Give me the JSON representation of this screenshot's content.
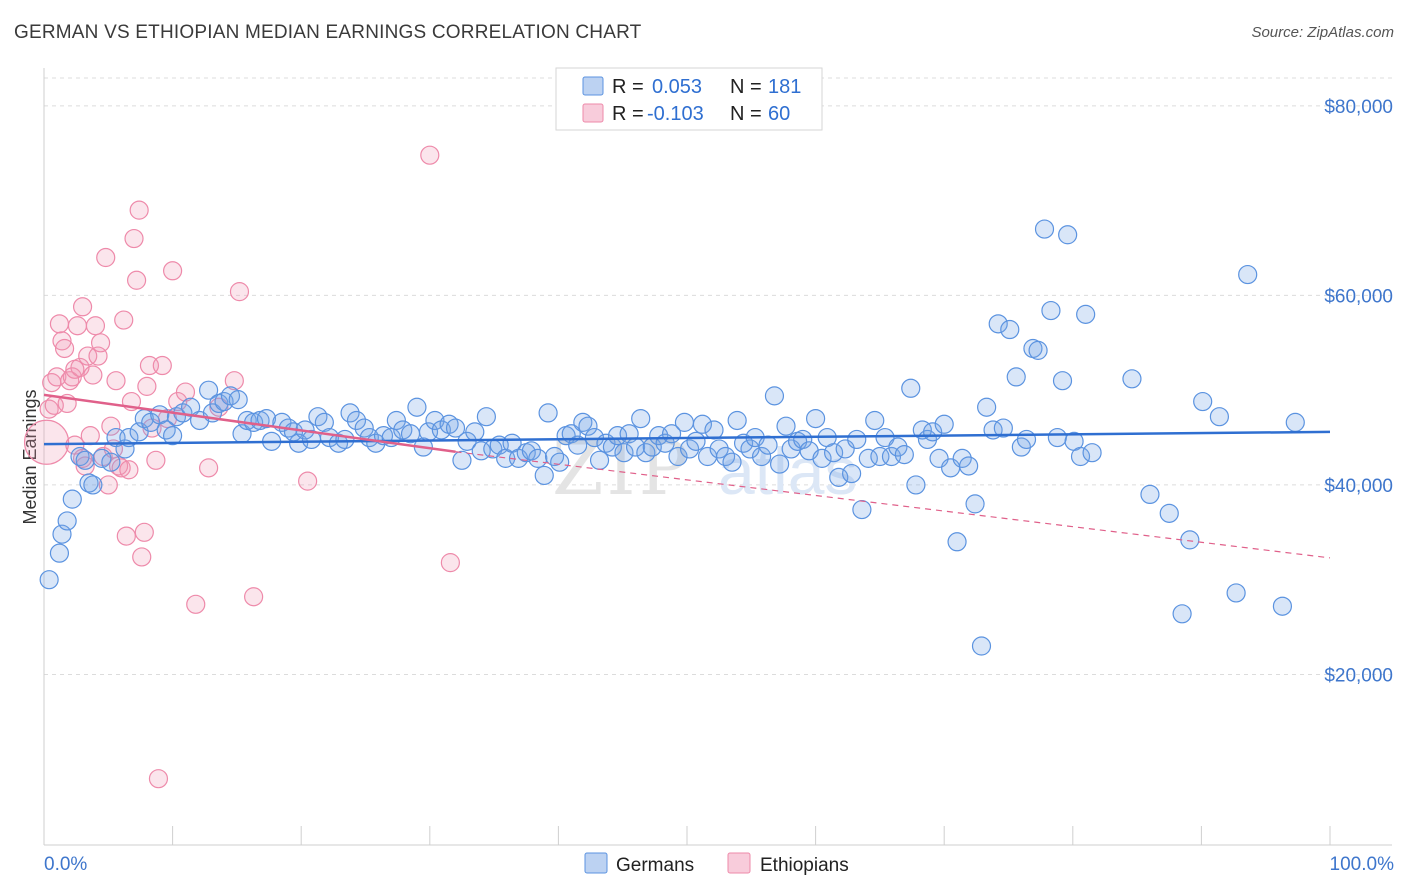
{
  "title": "GERMAN VS ETHIOPIAN MEDIAN EARNINGS CORRELATION CHART",
  "source": "Source: ZipAtlas.com",
  "colors": {
    "germans": "#5b93e0",
    "germans_fill": "rgba(120,165,230,0.28)",
    "germans_line": "#2f6fd1",
    "ethiopians": "#ee8aaa",
    "ethiopians_fill": "rgba(240,150,180,0.25)",
    "ethiopians_line": "#e0608a",
    "axis_label": "#3e76cc",
    "grid": "#dcdcdc"
  },
  "legend": {
    "rows": [
      {
        "r_label": "R =",
        "r_value": "0.053",
        "n_label": "N =",
        "n_value": "181"
      },
      {
        "r_label": "R =",
        "r_value": "-0.103",
        "n_label": "N =",
        "n_value": "60"
      }
    ]
  },
  "bottom_legend": [
    "Germans",
    "Ethiopians"
  ],
  "watermark": {
    "zip": "ZIP",
    "atlas": "atlas"
  },
  "chart_data": {
    "type": "scatter",
    "title": "GERMAN VS ETHIOPIAN MEDIAN EARNINGS CORRELATION CHART",
    "xlabel": "",
    "ylabel": "Median Earnings",
    "x_tick_labels": [
      "0.0%",
      "100.0%"
    ],
    "y_tick_labels": [
      "$20,000",
      "$40,000",
      "$60,000",
      "$80,000"
    ],
    "y_ticks": [
      20000,
      40000,
      60000,
      80000
    ],
    "xlim": [
      0,
      100
    ],
    "ylim": [
      2000,
      84000
    ],
    "grid": true,
    "legend_position": "top-center",
    "series": [
      {
        "name": "Germans",
        "r": 0.053,
        "n": 181,
        "trend": [
          [
            0,
            44300
          ],
          [
            100,
            45600
          ]
        ],
        "points": [
          [
            0.4,
            30000
          ],
          [
            1.2,
            32800
          ],
          [
            1.4,
            34800
          ],
          [
            1.8,
            36200
          ],
          [
            2.2,
            38500
          ],
          [
            2.8,
            43000
          ],
          [
            3.2,
            42600
          ],
          [
            3.5,
            40200
          ],
          [
            3.8,
            40000
          ],
          [
            4.5,
            42800
          ],
          [
            5.2,
            42400
          ],
          [
            5.6,
            45000
          ],
          [
            6.3,
            43800
          ],
          [
            6.6,
            45000
          ],
          [
            7.4,
            45600
          ],
          [
            7.8,
            47000
          ],
          [
            8.3,
            46600
          ],
          [
            9.0,
            47400
          ],
          [
            9.5,
            45800
          ],
          [
            10.0,
            45200
          ],
          [
            10.3,
            47200
          ],
          [
            10.8,
            47600
          ],
          [
            11.4,
            48200
          ],
          [
            12.1,
            46800
          ],
          [
            12.8,
            50000
          ],
          [
            13.1,
            47600
          ],
          [
            13.6,
            48600
          ],
          [
            14.0,
            48800
          ],
          [
            14.5,
            49400
          ],
          [
            15.1,
            49000
          ],
          [
            15.4,
            45400
          ],
          [
            15.8,
            46800
          ],
          [
            16.3,
            46600
          ],
          [
            16.8,
            46800
          ],
          [
            17.3,
            47000
          ],
          [
            17.7,
            44600
          ],
          [
            18.5,
            46600
          ],
          [
            19.0,
            46000
          ],
          [
            19.4,
            45600
          ],
          [
            19.8,
            44400
          ],
          [
            20.3,
            45800
          ],
          [
            20.8,
            44800
          ],
          [
            21.3,
            47200
          ],
          [
            21.8,
            46600
          ],
          [
            22.2,
            45000
          ],
          [
            22.9,
            44400
          ],
          [
            23.4,
            44800
          ],
          [
            23.8,
            47600
          ],
          [
            24.3,
            46800
          ],
          [
            24.9,
            46000
          ],
          [
            25.3,
            45000
          ],
          [
            25.8,
            44400
          ],
          [
            26.4,
            45200
          ],
          [
            27.0,
            45000
          ],
          [
            27.4,
            46800
          ],
          [
            27.9,
            45800
          ],
          [
            28.5,
            45400
          ],
          [
            29.0,
            48200
          ],
          [
            29.5,
            44000
          ],
          [
            29.9,
            45600
          ],
          [
            30.4,
            46800
          ],
          [
            30.9,
            45800
          ],
          [
            31.5,
            46400
          ],
          [
            32.0,
            46000
          ],
          [
            32.5,
            42600
          ],
          [
            32.9,
            44600
          ],
          [
            33.5,
            45600
          ],
          [
            34.0,
            43600
          ],
          [
            34.4,
            47200
          ],
          [
            34.9,
            43800
          ],
          [
            35.4,
            44200
          ],
          [
            35.9,
            42800
          ],
          [
            36.4,
            44400
          ],
          [
            36.9,
            42800
          ],
          [
            37.5,
            43400
          ],
          [
            37.9,
            43600
          ],
          [
            38.4,
            42800
          ],
          [
            38.9,
            41000
          ],
          [
            39.2,
            47600
          ],
          [
            39.7,
            43000
          ],
          [
            40.1,
            42400
          ],
          [
            40.6,
            45200
          ],
          [
            41.0,
            45400
          ],
          [
            41.5,
            44200
          ],
          [
            41.9,
            46600
          ],
          [
            42.3,
            46200
          ],
          [
            42.8,
            45000
          ],
          [
            43.2,
            42600
          ],
          [
            43.7,
            44400
          ],
          [
            44.2,
            44000
          ],
          [
            44.6,
            45200
          ],
          [
            45.1,
            43400
          ],
          [
            45.5,
            45400
          ],
          [
            46.0,
            44000
          ],
          [
            46.4,
            47000
          ],
          [
            46.8,
            43400
          ],
          [
            47.3,
            44000
          ],
          [
            47.8,
            45200
          ],
          [
            48.3,
            44400
          ],
          [
            48.8,
            45400
          ],
          [
            49.3,
            43000
          ],
          [
            49.8,
            46600
          ],
          [
            50.2,
            43800
          ],
          [
            50.7,
            44600
          ],
          [
            51.2,
            46400
          ],
          [
            51.6,
            43000
          ],
          [
            52.1,
            45800
          ],
          [
            52.5,
            43800
          ],
          [
            53.0,
            43000
          ],
          [
            53.5,
            42400
          ],
          [
            53.9,
            46800
          ],
          [
            54.4,
            44400
          ],
          [
            54.9,
            43800
          ],
          [
            55.3,
            45000
          ],
          [
            55.8,
            43000
          ],
          [
            56.3,
            44200
          ],
          [
            56.8,
            49400
          ],
          [
            57.2,
            42200
          ],
          [
            57.7,
            46200
          ],
          [
            58.1,
            43800
          ],
          [
            58.6,
            44600
          ],
          [
            59.0,
            44800
          ],
          [
            59.5,
            43600
          ],
          [
            60.0,
            47000
          ],
          [
            60.5,
            42800
          ],
          [
            60.9,
            45000
          ],
          [
            61.4,
            43400
          ],
          [
            61.8,
            40800
          ],
          [
            62.3,
            43800
          ],
          [
            62.8,
            41200
          ],
          [
            63.2,
            44800
          ],
          [
            63.6,
            37400
          ],
          [
            64.1,
            42800
          ],
          [
            64.6,
            46800
          ],
          [
            65.0,
            43000
          ],
          [
            65.4,
            45000
          ],
          [
            65.9,
            43000
          ],
          [
            66.4,
            44000
          ],
          [
            66.9,
            43200
          ],
          [
            67.4,
            50200
          ],
          [
            67.8,
            40000
          ],
          [
            68.3,
            45800
          ],
          [
            68.7,
            44800
          ],
          [
            69.1,
            45600
          ],
          [
            69.6,
            42800
          ],
          [
            70.0,
            46400
          ],
          [
            70.5,
            41800
          ],
          [
            71.0,
            34000
          ],
          [
            71.4,
            42800
          ],
          [
            71.9,
            42000
          ],
          [
            72.4,
            38000
          ],
          [
            72.9,
            23000
          ],
          [
            73.3,
            48200
          ],
          [
            73.8,
            45800
          ],
          [
            74.2,
            57000
          ],
          [
            74.6,
            46000
          ],
          [
            75.1,
            56400
          ],
          [
            75.6,
            51400
          ],
          [
            76.0,
            44000
          ],
          [
            76.4,
            44800
          ],
          [
            76.9,
            54400
          ],
          [
            77.3,
            54200
          ],
          [
            77.8,
            67000
          ],
          [
            78.3,
            58400
          ],
          [
            78.8,
            45000
          ],
          [
            79.2,
            51000
          ],
          [
            79.6,
            66400
          ],
          [
            80.1,
            44600
          ],
          [
            80.6,
            43000
          ],
          [
            81.0,
            58000
          ],
          [
            81.5,
            43400
          ],
          [
            84.6,
            51200
          ],
          [
            86.0,
            39000
          ],
          [
            87.5,
            37000
          ],
          [
            88.5,
            26400
          ],
          [
            89.1,
            34200
          ],
          [
            90.1,
            48800
          ],
          [
            91.4,
            47200
          ],
          [
            92.7,
            28600
          ],
          [
            93.6,
            62200
          ],
          [
            96.3,
            27200
          ],
          [
            97.3,
            46600
          ]
        ]
      },
      {
        "name": "Ethiopians",
        "r": -0.103,
        "n": 60,
        "trend": [
          [
            0,
            49500
          ],
          [
            32,
            43500
          ]
        ],
        "trend_dashed": [
          [
            32,
            43500
          ],
          [
            100,
            32300
          ]
        ],
        "points": [
          [
            0.2,
            44500
          ],
          [
            0.4,
            48000
          ],
          [
            0.6,
            50800
          ],
          [
            0.8,
            48400
          ],
          [
            1.0,
            51400
          ],
          [
            1.2,
            57000
          ],
          [
            1.4,
            55200
          ],
          [
            1.6,
            54400
          ],
          [
            1.8,
            48600
          ],
          [
            2.0,
            51000
          ],
          [
            2.2,
            51400
          ],
          [
            2.4,
            44200
          ],
          [
            2.6,
            56800
          ],
          [
            2.8,
            52400
          ],
          [
            3.0,
            58800
          ],
          [
            3.2,
            42000
          ],
          [
            3.4,
            53600
          ],
          [
            3.6,
            45200
          ],
          [
            3.8,
            51600
          ],
          [
            4.0,
            56800
          ],
          [
            4.2,
            53600
          ],
          [
            4.4,
            55000
          ],
          [
            4.6,
            43000
          ],
          [
            4.8,
            64000
          ],
          [
            5.0,
            40000
          ],
          [
            5.2,
            46200
          ],
          [
            5.4,
            43800
          ],
          [
            5.6,
            51000
          ],
          [
            5.8,
            42000
          ],
          [
            6.0,
            41800
          ],
          [
            6.2,
            57400
          ],
          [
            6.4,
            34600
          ],
          [
            6.6,
            41600
          ],
          [
            6.8,
            48800
          ],
          [
            7.0,
            66000
          ],
          [
            7.2,
            61600
          ],
          [
            7.4,
            69000
          ],
          [
            7.6,
            32400
          ],
          [
            7.8,
            35000
          ],
          [
            8.0,
            50400
          ],
          [
            8.2,
            52600
          ],
          [
            8.4,
            46000
          ],
          [
            8.7,
            42600
          ],
          [
            8.9,
            9000
          ],
          [
            9.2,
            52600
          ],
          [
            9.6,
            47000
          ],
          [
            10.0,
            62600
          ],
          [
            10.4,
            48800
          ],
          [
            11.0,
            49800
          ],
          [
            11.8,
            27400
          ],
          [
            12.8,
            41800
          ],
          [
            13.6,
            48200
          ],
          [
            14.8,
            51000
          ],
          [
            15.2,
            60400
          ],
          [
            16.3,
            28200
          ],
          [
            20.5,
            40400
          ],
          [
            30.0,
            74800
          ],
          [
            31.6,
            31800
          ],
          [
            3.0,
            42800
          ],
          [
            2.4,
            52200
          ]
        ]
      }
    ]
  }
}
